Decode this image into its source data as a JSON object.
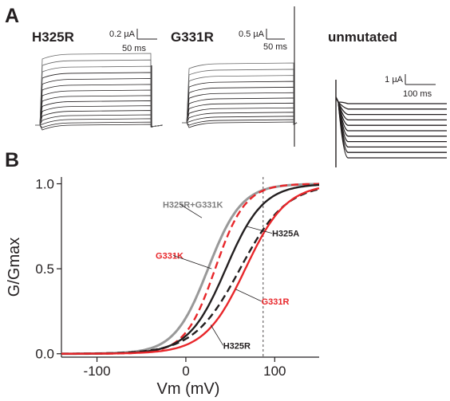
{
  "panel_a": {
    "letter": "A",
    "traces": [
      {
        "key": "h325r",
        "label": "H325R",
        "scale_current": "0.2 µA",
        "scale_time": "50 ms",
        "step_count": 15
      },
      {
        "key": "g331r",
        "label": "G331R",
        "scale_current": "0.5 µA",
        "scale_time": "50 ms",
        "step_count": 13
      },
      {
        "key": "unmutated",
        "label": "unmutated",
        "scale_current": "1 µA",
        "scale_time": "100 ms",
        "step_count": 11
      }
    ]
  },
  "chart_data": {
    "type": "line",
    "panel_letter": "B",
    "xlabel": "Vm (mV)",
    "ylabel": "G/Gmax",
    "xlim": [
      -140,
      150
    ],
    "ylim": [
      -0.02,
      1.04
    ],
    "xticks": [
      -100,
      0,
      100
    ],
    "yticks": [
      0.0,
      0.5,
      1.0
    ],
    "ytick_labels": [
      "0.0",
      "0.5",
      "1.0"
    ],
    "reference_line_x": 87,
    "model": "boltzmann",
    "series": [
      {
        "name": "H325R+G331K",
        "v_half": 25,
        "slope": 19,
        "color": "#999999",
        "dash": "solid",
        "label_color": "#7f7f7f"
      },
      {
        "name": "G331K",
        "v_half": 33,
        "slope": 17,
        "color": "#e8262a",
        "dash": "dashed",
        "label_color": "#e8262a"
      },
      {
        "name": "H325A",
        "v_half": 45,
        "slope": 21,
        "color": "#231f20",
        "dash": "solid",
        "label_color": "#231f20"
      },
      {
        "name": "",
        "v_half": 61,
        "slope": 26,
        "color": "#231f20",
        "dash": "dashed",
        "label_color": "#231f20"
      },
      {
        "name": "G331R",
        "v_half": 67,
        "slope": 23,
        "color": "#e8262a",
        "dash": "solid",
        "label_color": "#e8262a"
      },
      {
        "name": "H325R",
        "v_half": 65,
        "slope": 25,
        "color": "#231f20",
        "dash": "solid",
        "label_color": "#231f20",
        "label_only": true
      }
    ],
    "labels": [
      {
        "text": "H325R+G331K",
        "x": -26,
        "y": 0.86,
        "color": "#7f7f7f",
        "pointer_to": [
          18,
          0.8
        ]
      },
      {
        "text": "G331K",
        "x": -34,
        "y": 0.56,
        "color": "#e8262a",
        "pointer_to": [
          29,
          0.5
        ]
      },
      {
        "text": "H325A",
        "x": 97,
        "y": 0.69,
        "color": "#231f20",
        "pointer_to": [
          68,
          0.75
        ]
      },
      {
        "text": "G331R",
        "x": 85,
        "y": 0.29,
        "color": "#e8262a",
        "pointer_to": [
          56,
          0.38
        ]
      },
      {
        "text": "H325R",
        "x": 42,
        "y": 0.03,
        "color": "#231f20",
        "pointer_to": [
          28,
          0.17
        ]
      }
    ]
  }
}
